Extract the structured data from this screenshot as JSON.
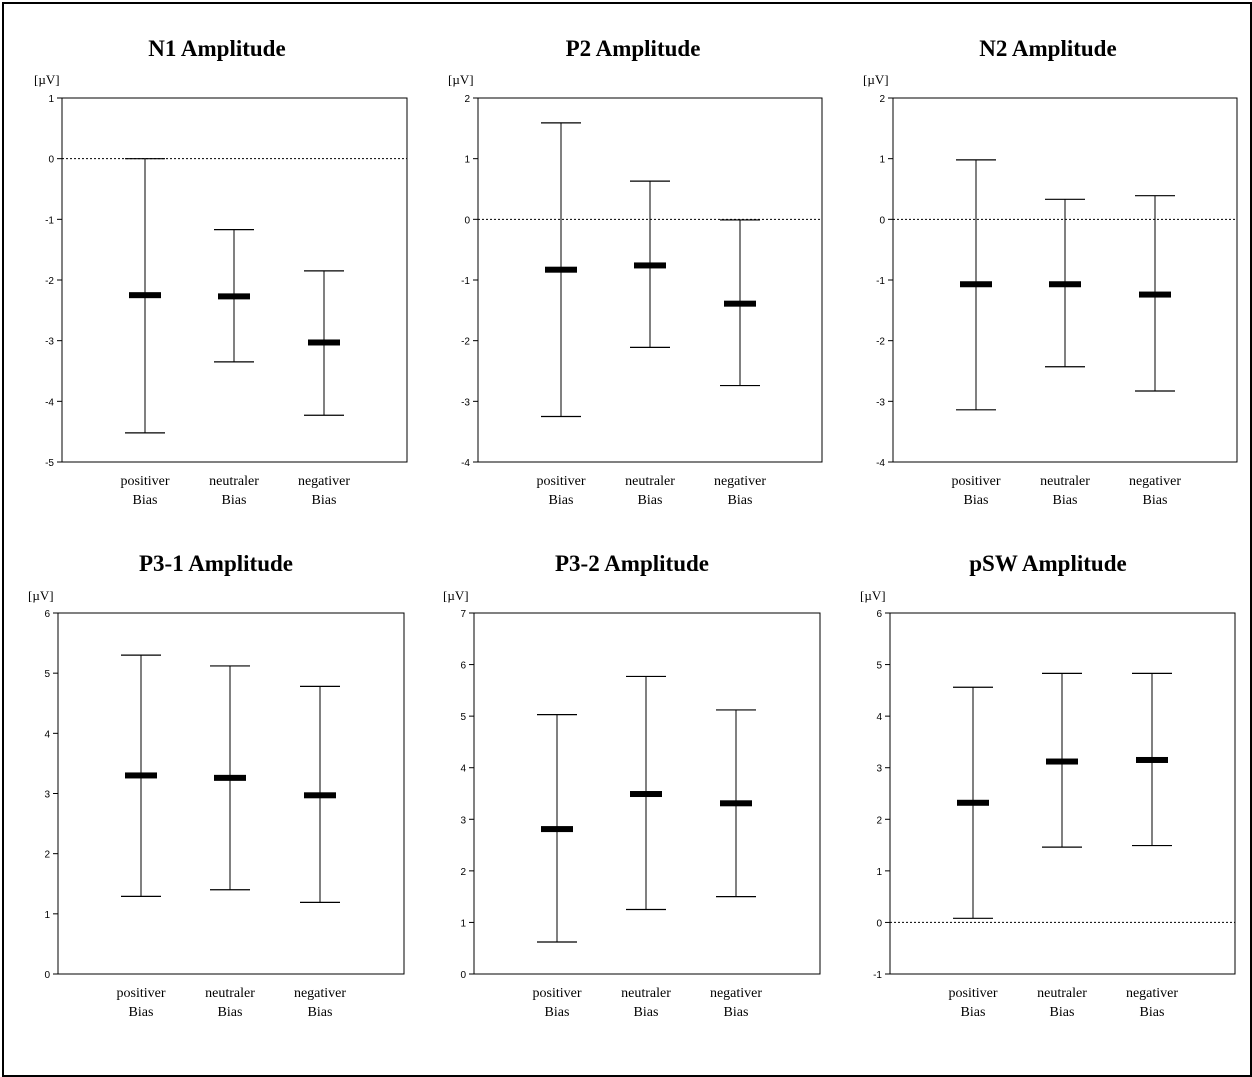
{
  "chart_data": [
    {
      "type": "errorbar",
      "title": "N1 Amplitude",
      "ylabel": "[µV]",
      "ylim": [
        -5,
        1
      ],
      "yticks": [
        1,
        0,
        -1,
        -2,
        -3,
        -4,
        -5
      ],
      "reference_line": 0,
      "categories": [
        [
          "positiver",
          "Bias"
        ],
        [
          "neutraler",
          "Bias"
        ],
        [
          "negativer",
          "Bias"
        ]
      ],
      "means": [
        -2.25,
        -2.27,
        -3.03
      ],
      "upper": [
        0.0,
        -1.17,
        -1.85
      ],
      "lower": [
        -4.52,
        -3.35,
        -4.23
      ]
    },
    {
      "type": "errorbar",
      "title": "P2 Amplitude",
      "ylabel": "[µV]",
      "ylim": [
        -4,
        2
      ],
      "yticks": [
        2,
        1,
        0,
        -1,
        -2,
        -3,
        -4
      ],
      "reference_line": 0,
      "categories": [
        [
          "positiver",
          "Bias"
        ],
        [
          "neutraler",
          "Bias"
        ],
        [
          "negativer",
          "Bias"
        ]
      ],
      "means": [
        -0.83,
        -0.76,
        -1.39
      ],
      "upper": [
        1.59,
        0.63,
        -0.01
      ],
      "lower": [
        -3.25,
        -2.11,
        -2.74
      ]
    },
    {
      "type": "errorbar",
      "title": "N2 Amplitude",
      "ylabel": "[µV]",
      "ylim": [
        -4,
        2
      ],
      "yticks": [
        2,
        1,
        0,
        -1,
        -2,
        -3,
        -4
      ],
      "reference_line": 0,
      "categories": [
        [
          "positiver",
          "Bias"
        ],
        [
          "neutraler",
          "Bias"
        ],
        [
          "negativer",
          "Bias"
        ]
      ],
      "means": [
        -1.07,
        -1.07,
        -1.24
      ],
      "upper": [
        0.98,
        0.33,
        0.39
      ],
      "lower": [
        -3.14,
        -2.43,
        -2.83
      ]
    },
    {
      "type": "errorbar",
      "title": "P3-1 Amplitude",
      "ylabel": "[µV]",
      "ylim": [
        0,
        6
      ],
      "yticks": [
        6,
        5,
        4,
        3,
        2,
        1,
        0
      ],
      "reference_line": null,
      "categories": [
        [
          "positiver",
          "Bias"
        ],
        [
          "neutraler",
          "Bias"
        ],
        [
          "negativer",
          "Bias"
        ]
      ],
      "means": [
        3.3,
        3.26,
        2.97
      ],
      "upper": [
        5.3,
        5.12,
        4.78
      ],
      "lower": [
        1.29,
        1.4,
        1.19
      ]
    },
    {
      "type": "errorbar",
      "title": "P3-2 Amplitude",
      "ylabel": "[µV]",
      "ylim": [
        0,
        7
      ],
      "yticks": [
        7,
        6,
        5,
        4,
        3,
        2,
        1,
        0
      ],
      "reference_line": null,
      "categories": [
        [
          "positiver",
          "Bias"
        ],
        [
          "neutraler",
          "Bias"
        ],
        [
          "negativer",
          "Bias"
        ]
      ],
      "means": [
        2.81,
        3.49,
        3.31
      ],
      "upper": [
        5.03,
        5.77,
        5.12
      ],
      "lower": [
        0.62,
        1.25,
        1.5
      ]
    },
    {
      "type": "errorbar",
      "title": "pSW Amplitude",
      "ylabel": "[µV]",
      "ylim": [
        -1,
        6
      ],
      "yticks": [
        6,
        5,
        4,
        3,
        2,
        1,
        0,
        -1
      ],
      "reference_line": 0,
      "categories": [
        [
          "positiver",
          "Bias"
        ],
        [
          "neutraler",
          "Bias"
        ],
        [
          "negativer",
          "Bias"
        ]
      ],
      "means": [
        2.32,
        3.12,
        3.15
      ],
      "upper": [
        4.56,
        4.83,
        4.83
      ],
      "lower": [
        0.08,
        1.46,
        1.49
      ]
    }
  ]
}
